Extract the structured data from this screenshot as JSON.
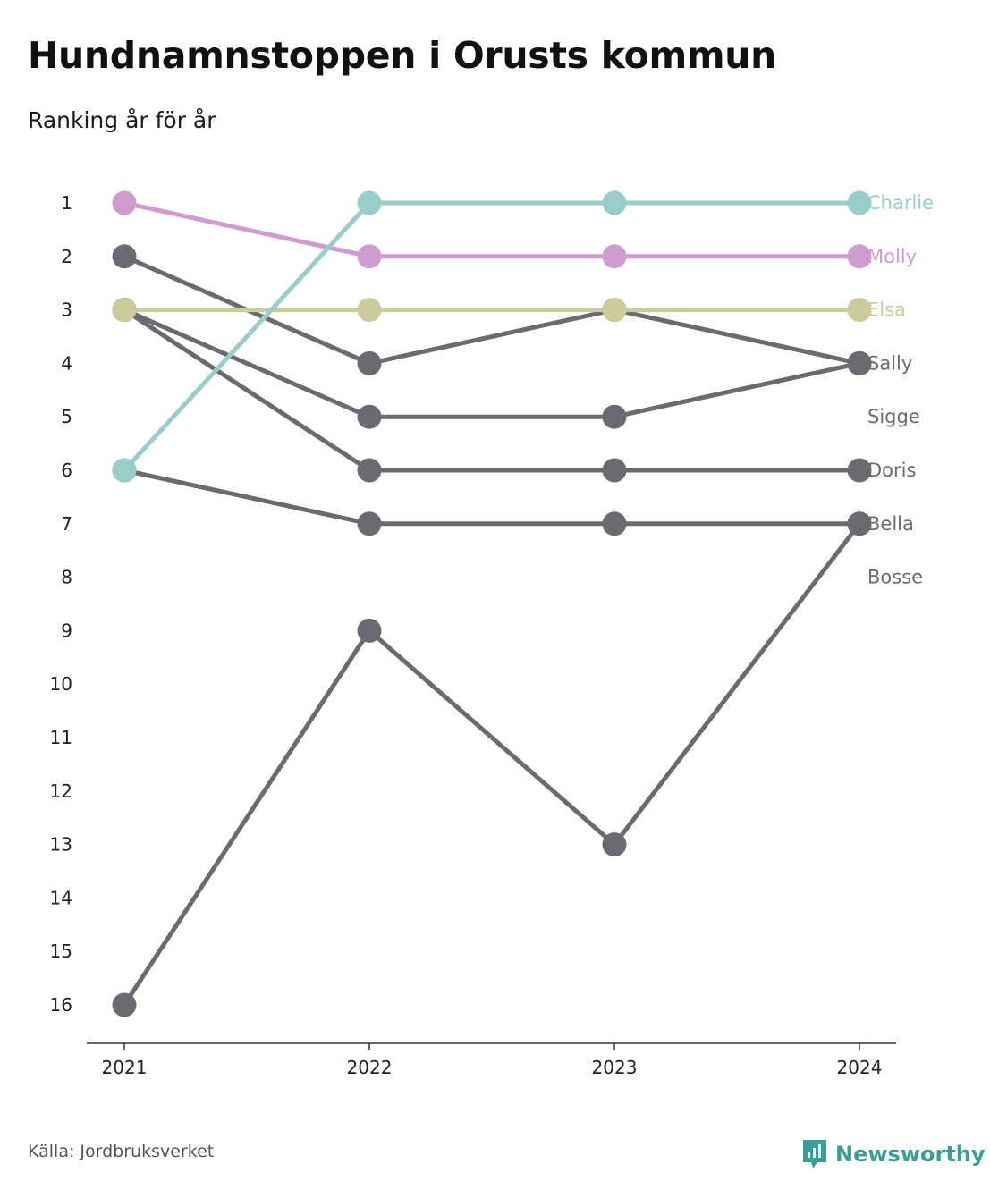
{
  "title": "Hundnamnstoppen i Orusts kommun",
  "subtitle": "Ranking år för år",
  "source": "Källa: Jordbruksverket",
  "brand": {
    "name": "Newsworthy",
    "icon": "newsworthy-logo-icon",
    "color": "#3a9e94"
  },
  "colors": {
    "highlight_teal": "#99cdc9",
    "highlight_pink": "#cf9ccf",
    "highlight_olive": "#cbcb9c",
    "other": "#6b6a70",
    "axis": "#333333"
  },
  "chart_data": {
    "type": "line",
    "x": [
      "2021",
      "2022",
      "2023",
      "2024"
    ],
    "y_ticks": [
      "1",
      "2",
      "3",
      "4",
      "5",
      "6",
      "7",
      "8",
      "9",
      "10",
      "11",
      "12",
      "13",
      "14",
      "15",
      "16"
    ],
    "ylim": [
      1,
      16
    ],
    "y_reversed": true,
    "grid": false,
    "legend": "end-labels-right",
    "series": [
      {
        "name": "Bosse",
        "values": [
          16,
          9,
          13,
          7
        ],
        "color": "#6b6a70"
      },
      {
        "name": "Bella",
        "values": [
          6,
          7,
          7,
          7
        ],
        "color": "#6b6a70"
      },
      {
        "name": "Doris",
        "values": [
          3,
          6,
          6,
          6
        ],
        "color": "#6b6a70"
      },
      {
        "name": "Sigge",
        "values": [
          3,
          5,
          5,
          4
        ],
        "color": "#6b6a70"
      },
      {
        "name": "Sally",
        "values": [
          2,
          4,
          3,
          4
        ],
        "color": "#6b6a70"
      },
      {
        "name": "Elsa",
        "values": [
          3,
          3,
          3,
          3
        ],
        "color": "#cbcb9c"
      },
      {
        "name": "Molly",
        "values": [
          1,
          2,
          2,
          2
        ],
        "color": "#cf9ccf"
      },
      {
        "name": "Charlie",
        "values": [
          6,
          1,
          1,
          1
        ],
        "color": "#99cdc9"
      }
    ],
    "end_labels": [
      {
        "name": "Charlie",
        "rank": 1,
        "color": "#99cdc9"
      },
      {
        "name": "Molly",
        "rank": 2,
        "color": "#cf9ccf"
      },
      {
        "name": "Elsa",
        "rank": 3,
        "color": "#cbcb9c"
      },
      {
        "name": "Sally",
        "rank": 4,
        "color": "#6b6a70"
      },
      {
        "name": "Sigge",
        "rank": 5,
        "color": "#6b6a70"
      },
      {
        "name": "Doris",
        "rank": 6,
        "color": "#6b6a70"
      },
      {
        "name": "Bella",
        "rank": 7,
        "color": "#6b6a70"
      },
      {
        "name": "Bosse",
        "rank": 8,
        "color": "#6b6a70"
      }
    ]
  }
}
